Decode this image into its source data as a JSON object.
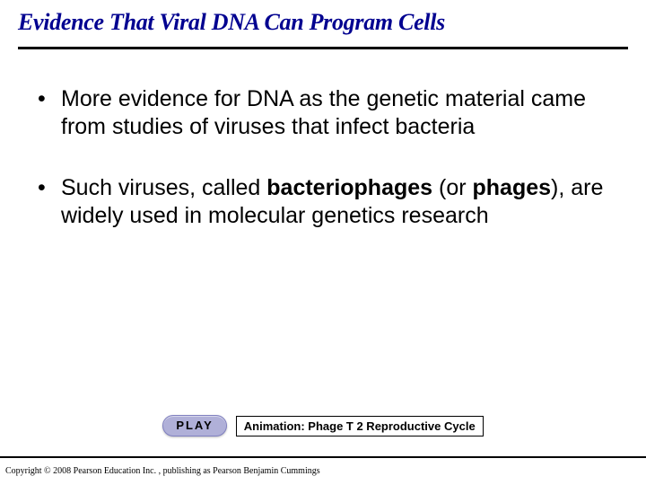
{
  "title": "Evidence That Viral DNA Can Program Cells",
  "bullets": [
    {
      "pre": "More evidence for DNA as the genetic material came from studies of viruses that infect bacteria",
      "bold1": "",
      "mid": "",
      "bold2": "",
      "post": ""
    },
    {
      "pre": "Such viruses, called ",
      "bold1": "bacteriophages",
      "mid": " (or ",
      "bold2": "phages",
      "post": "), are widely used in molecular genetics research"
    }
  ],
  "play": {
    "button": "PLAY",
    "label": "Animation: Phage T 2 Reproductive Cycle"
  },
  "copyright": "Copyright © 2008 Pearson Education Inc. , publishing as Pearson Benjamin Cummings",
  "colors": {
    "title": "#000090",
    "rule": "#000000",
    "text": "#000000",
    "play_bg": "#b0b0d8",
    "play_border": "#8080c0",
    "background": "#ffffff"
  },
  "fonts": {
    "title_family": "Times New Roman",
    "title_size_pt": 20,
    "body_family": "Arial",
    "body_size_pt": 19,
    "copyright_size_pt": 8
  }
}
